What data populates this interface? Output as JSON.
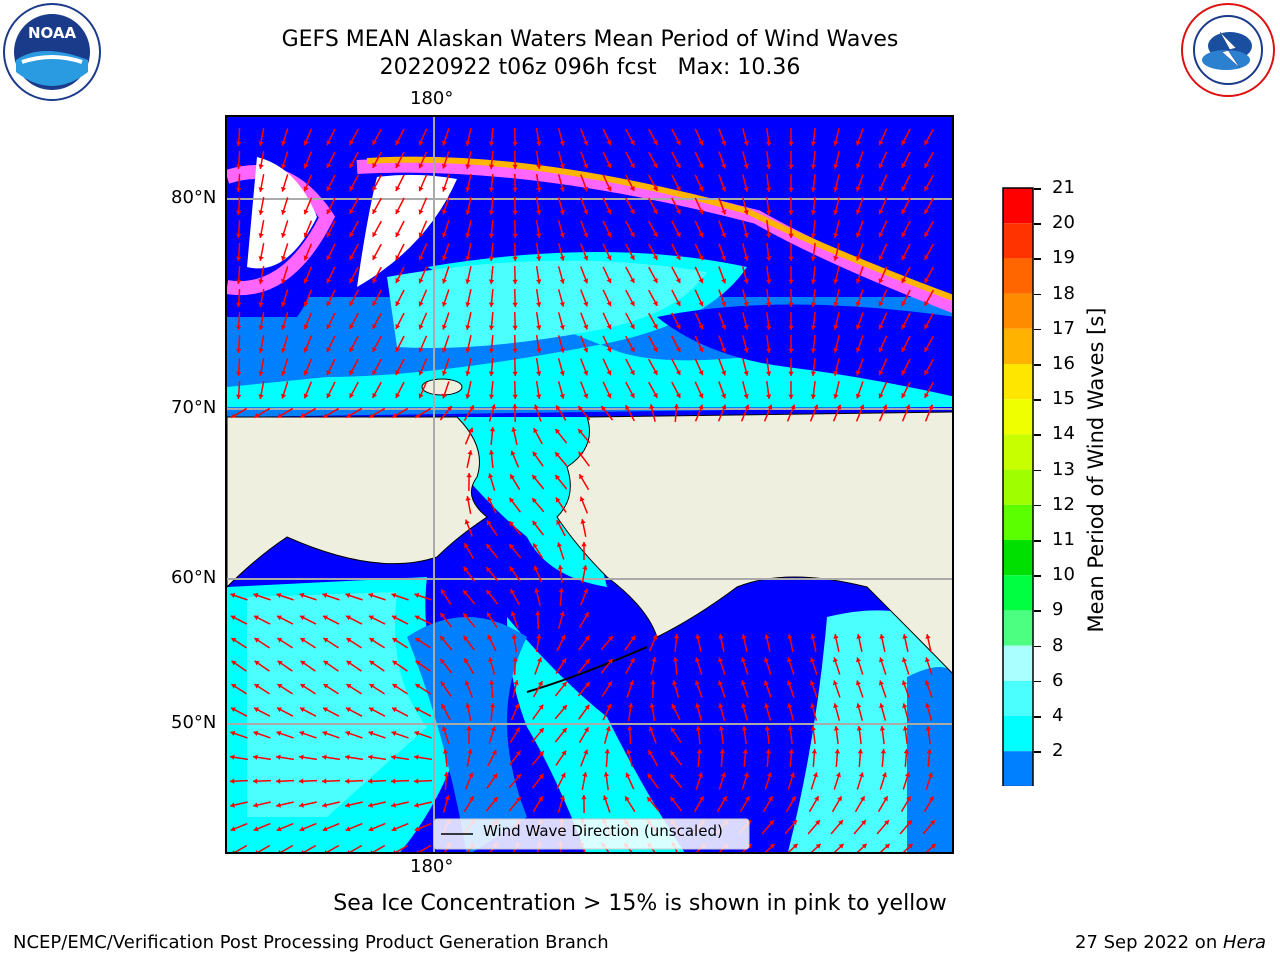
{
  "header": {
    "title_line1": "GEFS MEAN Alaskan Waters Mean Period of Wind Waves",
    "title_line2": "20220922 t06z 096h fcst   Max: 10.36"
  },
  "logos": {
    "left": {
      "text": "NOAA",
      "ring_text": "NATIONAL OCEANIC AND ATMOSPHERIC ADMINISTRATION · U.S. DEPARTMENT OF COMMERCE"
    },
    "right": {
      "ring_text": "NATIONAL WEATHER SERVICE"
    }
  },
  "map": {
    "lon_label_top": "180°",
    "lon_label_bottom": "180°",
    "lat_labels": [
      "80°N",
      "70°N",
      "60°N",
      "50°N"
    ],
    "legend_label": "Wind Wave Direction (unscaled)",
    "colors": {
      "land": "#efefdf",
      "ocean_dark": "#0000ff",
      "ocean_mid": "#0080ff",
      "ocean_light": "#00ffff",
      "ocean_pale": "#4cffff",
      "ice_pink": "#ff66ff",
      "ice_orange": "#ffb400",
      "arrow": "#ff0000"
    }
  },
  "colorbar": {
    "label": "Mean Period of Wind Waves [s]",
    "ticks": [
      "21",
      "20",
      "19",
      "18",
      "17",
      "16",
      "15",
      "14",
      "13",
      "12",
      "11",
      "10",
      "9",
      "8",
      "6",
      "4",
      "2"
    ],
    "colors": [
      "#ff0000",
      "#ff3300",
      "#ff6600",
      "#ff8c00",
      "#ffb300",
      "#ffe600",
      "#f0ff00",
      "#c8ff00",
      "#9fff00",
      "#5cff00",
      "#00e000",
      "#00ff40",
      "#4cff80",
      "#aaffff",
      "#4cffff",
      "#00ffff",
      "#0080ff"
    ],
    "extend_color": "#0000ff"
  },
  "notes": {
    "sea_ice": "Sea Ice Concentration > 15% is shown in pink to yellow"
  },
  "footer": {
    "left": "NCEP/EMC/Verification Post Processing Product Generation Branch",
    "date": "27 Sep 2022 on ",
    "machine": "Hera"
  }
}
